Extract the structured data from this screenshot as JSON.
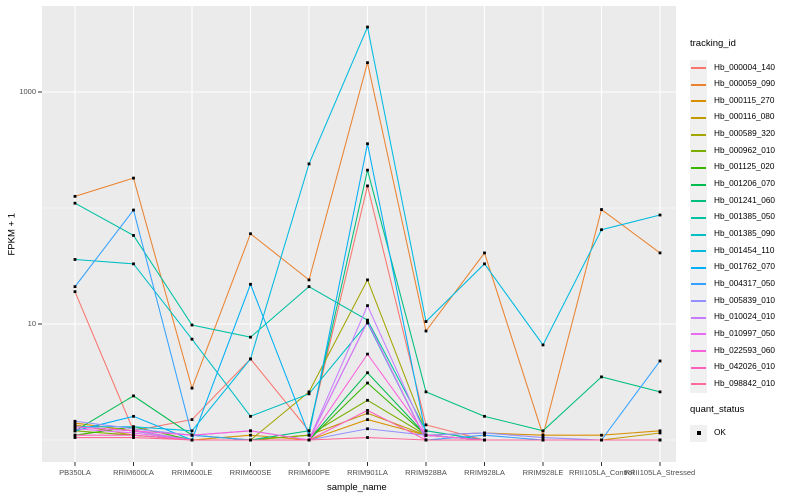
{
  "figure": {
    "background": "#ffffff",
    "panel_background": "#ebebeb",
    "grid_color": "#ffffff",
    "axis_text_color": "#4d4d4d",
    "tick_color": "#333333",
    "marker_color": "#000000",
    "legend_key_background": "#f0f0f0"
  },
  "chart_data": {
    "type": "line",
    "title": "",
    "xlabel": "sample_name",
    "ylabel": "FPKM + 1",
    "y_scale": "log10",
    "grid": true,
    "legend_position": "right",
    "y_ticks": [
      {
        "value": 10,
        "label": "10"
      },
      {
        "value": 1000,
        "label": "1000"
      }
    ],
    "y_minor_ticks": [
      1,
      100
    ],
    "ylim": [
      0.65,
      5500
    ],
    "categories": [
      "PB350LA",
      "RRIM600LA",
      "RRIM600LE",
      "RRIM600SE",
      "RRIM600PE",
      "RRIM901LA",
      "RRIM928BA",
      "RRIM928LA",
      "RRIM928LE",
      "RRII105LA_Control",
      "RRII105LA_Stressed"
    ],
    "legend_title": "tracking_id",
    "series": [
      {
        "name": "Hb_000004_140",
        "color": "#F8766D",
        "values": [
          19,
          1.2,
          1.5,
          5,
          1.2,
          155,
          1.35,
          1,
          1,
          1,
          1
        ]
      },
      {
        "name": "Hb_000059_090",
        "color": "#EA8331",
        "values": [
          126,
          181,
          2.8,
          60,
          24,
          1790,
          8.7,
          41,
          1.1,
          97,
          41
        ]
      },
      {
        "name": "Hb_000115_270",
        "color": "#D89000",
        "values": [
          1.4,
          1.2,
          1,
          1.1,
          1,
          1.5,
          1.1,
          1.15,
          1.1,
          1.1,
          1.2
        ]
      },
      {
        "name": "Hb_000116_080",
        "color": "#C09B00",
        "values": [
          1.35,
          1.1,
          1,
          1,
          1.1,
          1.7,
          1.1,
          1,
          1,
          1,
          1.15
        ]
      },
      {
        "name": "Hb_000589_320",
        "color": "#A3A500",
        "values": [
          1.3,
          1.2,
          1,
          1,
          2.6,
          24,
          1.2,
          1,
          1,
          1,
          1
        ]
      },
      {
        "name": "Hb_000962_010",
        "color": "#7CAE00",
        "values": [
          1.2,
          1.1,
          1,
          1,
          1.1,
          2.2,
          1.1,
          1,
          1,
          1,
          1
        ]
      },
      {
        "name": "Hb_001125_020",
        "color": "#39B600",
        "values": [
          1.1,
          1.3,
          1,
          1,
          1,
          3.1,
          1.1,
          1,
          1,
          1,
          1
        ]
      },
      {
        "name": "Hb_001206_070",
        "color": "#00BB4E",
        "values": [
          1.2,
          2.4,
          1.1,
          1,
          1,
          3.8,
          1.1,
          1,
          1,
          1,
          1
        ]
      },
      {
        "name": "Hb_001241_060",
        "color": "#00BF7D",
        "values": [
          1.3,
          1.2,
          1,
          1,
          1.2,
          212,
          2.6,
          1.6,
          1.2,
          3.5,
          2.6
        ]
      },
      {
        "name": "Hb_001385_050",
        "color": "#00C1A3",
        "values": [
          110,
          58,
          9.8,
          7.7,
          21,
          10.8,
          1.2,
          1,
          1,
          1,
          1
        ]
      },
      {
        "name": "Hb_001385_090",
        "color": "#00BFC4",
        "values": [
          36,
          33,
          7.4,
          1.6,
          2.5,
          10.2,
          1,
          1,
          1,
          1,
          1
        ]
      },
      {
        "name": "Hb_001454_110",
        "color": "#00BAE0",
        "values": [
          1.3,
          1.3,
          1.2,
          5,
          240,
          3630,
          10.5,
          33,
          6.6,
          65,
          87
        ]
      },
      {
        "name": "Hb_001762_070",
        "color": "#00B0F6",
        "values": [
          1.2,
          1.6,
          1,
          22,
          1.1,
          358,
          1.1,
          1,
          1,
          1,
          1
        ]
      },
      {
        "name": "Hb_004317_050",
        "color": "#35A2FF",
        "values": [
          21,
          96,
          1.1,
          1,
          1,
          10.5,
          1,
          1.1,
          1,
          1,
          4.8
        ]
      },
      {
        "name": "Hb_005839_010",
        "color": "#9590FF",
        "values": [
          1.45,
          1.25,
          1.1,
          1.2,
          1,
          1.25,
          1.1,
          1.15,
          1.05,
          1,
          1
        ]
      },
      {
        "name": "Hb_010024_010",
        "color": "#C77CFF",
        "values": [
          1.3,
          1.2,
          1,
          1,
          1,
          14.4,
          1.1,
          1,
          1,
          1,
          1
        ]
      },
      {
        "name": "Hb_010997_050",
        "color": "#E76BF3",
        "values": [
          1.25,
          1.15,
          1,
          1,
          1,
          10.5,
          1,
          1,
          1,
          1,
          1
        ]
      },
      {
        "name": "Hb_022593_060",
        "color": "#FA62DB",
        "values": [
          1.3,
          1.2,
          1.1,
          1.2,
          1,
          5.5,
          1.1,
          1,
          1,
          1,
          1
        ]
      },
      {
        "name": "Hb_042026_010",
        "color": "#FF62BC",
        "values": [
          1.1,
          1.1,
          1,
          1,
          1,
          1.8,
          1,
          1,
          1,
          1,
          1
        ]
      },
      {
        "name": "Hb_098842_010",
        "color": "#FF6A98",
        "values": [
          1.05,
          1.05,
          1,
          1,
          1,
          1.05,
          1,
          1,
          1,
          1,
          1
        ]
      }
    ],
    "legend2_title": "quant_status",
    "legend2_items": [
      "OK"
    ]
  }
}
